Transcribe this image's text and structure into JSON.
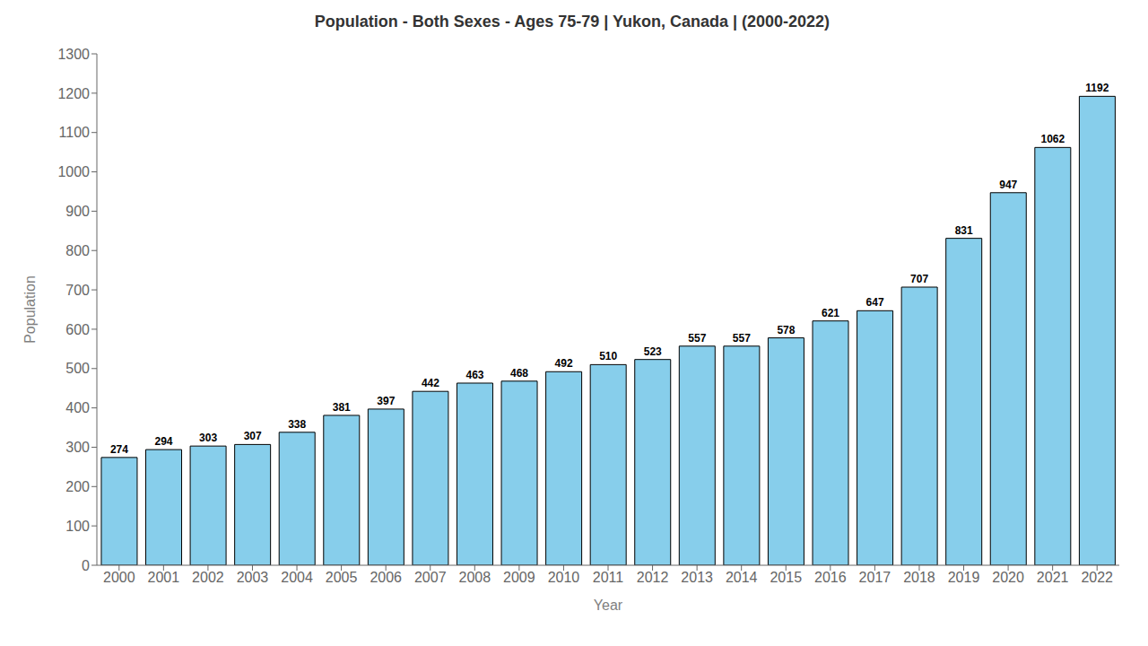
{
  "chart_data": {
    "type": "bar",
    "title": "Population - Both Sexes - Ages 75-79 | Yukon, Canada |  (2000-2022)",
    "x_label": "Year",
    "y_label": "Population",
    "categories": [
      "2000",
      "2001",
      "2002",
      "2003",
      "2004",
      "2005",
      "2006",
      "2007",
      "2008",
      "2009",
      "2010",
      "2011",
      "2012",
      "2013",
      "2014",
      "2015",
      "2016",
      "2017",
      "2018",
      "2019",
      "2020",
      "2021",
      "2022"
    ],
    "values": [
      274,
      294,
      303,
      307,
      338,
      381,
      397,
      442,
      463,
      468,
      492,
      510,
      523,
      557,
      557,
      578,
      621,
      647,
      707,
      831,
      947,
      1062,
      1192
    ],
    "color": "#87CEEB",
    "ylim": [
      0,
      1300
    ],
    "yticks": [
      0,
      100,
      200,
      300,
      400,
      500,
      600,
      700,
      800,
      900,
      1000,
      1100,
      1200,
      1300
    ],
    "grid": false,
    "data_labels": true
  }
}
